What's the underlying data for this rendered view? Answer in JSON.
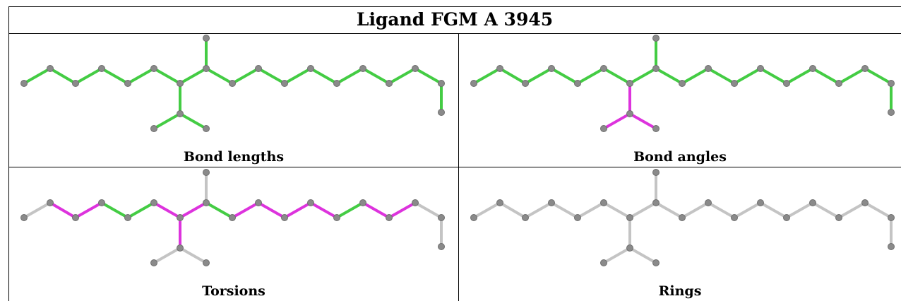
{
  "title": "Ligand FGM A 3945",
  "colors": {
    "green": "#44cc44",
    "magenta": "#dd33dd",
    "grey_bond": "#c4c4c4",
    "atom": "#8a8a8a"
  },
  "panels": [
    {
      "caption": "Bond lengths",
      "bond_colors": [
        "green",
        "green",
        "green",
        "green",
        "green",
        "green",
        "green",
        "green",
        "green",
        "green",
        "green",
        "green",
        "green",
        "green",
        "green",
        "green",
        "green",
        "green",
        "green"
      ]
    },
    {
      "caption": "Bond angles",
      "bond_colors": [
        "green",
        "green",
        "green",
        "green",
        "green",
        "green",
        "green",
        "green",
        "green",
        "green",
        "green",
        "green",
        "green",
        "green",
        "green",
        "green",
        "magenta",
        "magenta",
        "magenta"
      ]
    },
    {
      "caption": "Torsions",
      "bond_colors": [
        "grey_bond",
        "magenta",
        "magenta",
        "green",
        "green",
        "magenta",
        "magenta",
        "green",
        "magenta",
        "magenta",
        "magenta",
        "magenta",
        "green",
        "magenta",
        "magenta",
        "grey_bond",
        "magenta",
        "grey_bond",
        "grey_bond"
      ]
    },
    {
      "caption": "Rings",
      "bond_colors": [
        "grey_bond",
        "grey_bond",
        "grey_bond",
        "grey_bond",
        "grey_bond",
        "grey_bond",
        "grey_bond",
        "grey_bond",
        "grey_bond",
        "grey_bond",
        "grey_bond",
        "grey_bond",
        "grey_bond",
        "grey_bond",
        "grey_bond",
        "grey_bond",
        "grey_bond",
        "grey_bond",
        "grey_bond"
      ]
    }
  ]
}
